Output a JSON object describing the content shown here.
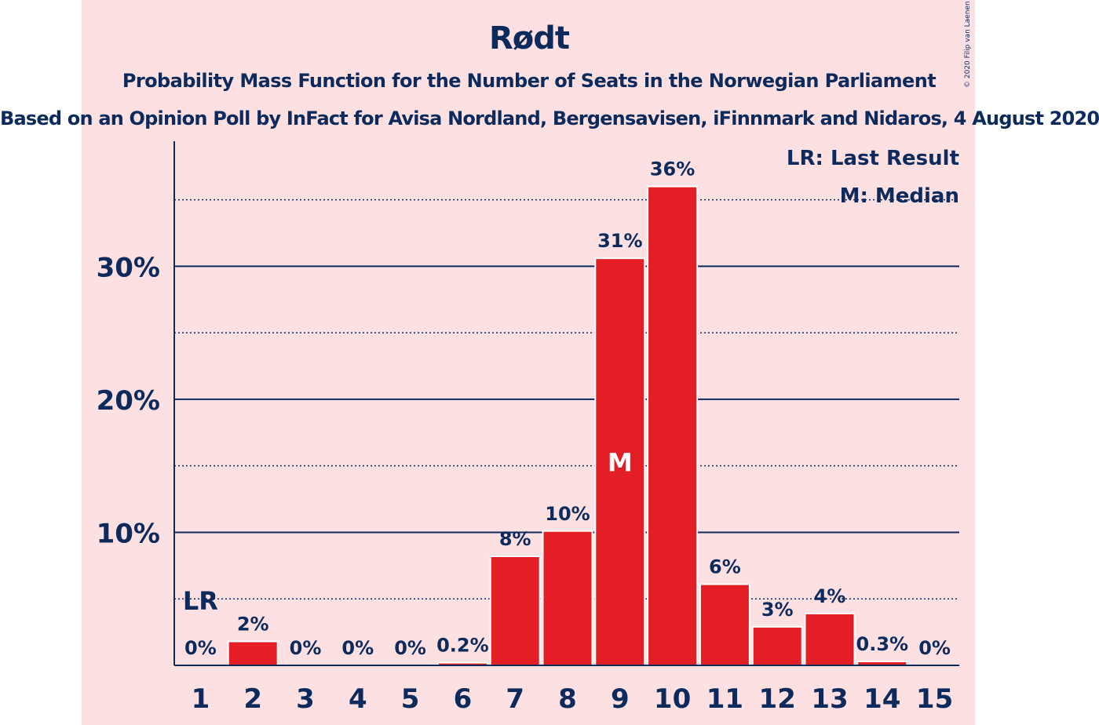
{
  "header": {
    "title": "Rødt",
    "subtitle": "Probability Mass Function for the Number of Seats in the Norwegian Parliament",
    "subtitle2": "Based on an Opinion Poll by InFact for Avisa Nordland, Bergensavisen, iFinnmark and Nidaros, 4 August 2020",
    "copyright": "© 2020 Filip van Laenen"
  },
  "legend": {
    "last_result": "LR: Last Result",
    "median": "M: Median"
  },
  "chart_data": {
    "type": "bar",
    "categories": [
      "1",
      "2",
      "3",
      "4",
      "5",
      "6",
      "7",
      "8",
      "9",
      "10",
      "11",
      "12",
      "13",
      "14",
      "15"
    ],
    "values": [
      0,
      1.8,
      0,
      0,
      0,
      0.2,
      8.2,
      10.1,
      30.6,
      36.0,
      6.1,
      2.9,
      3.9,
      0.3,
      0
    ],
    "labels": [
      "0%",
      "2%",
      "0%",
      "0%",
      "0%",
      "0.2%",
      "8%",
      "10%",
      "31%",
      "36%",
      "6%",
      "3%",
      "4%",
      "0.3%",
      "0%"
    ],
    "ylim": [
      0,
      39.4
    ],
    "yticks": [
      10,
      20,
      30
    ],
    "ytick_labels": [
      "10%",
      "20%",
      "30%"
    ],
    "minor_gridlines": [
      5,
      15,
      25,
      35
    ],
    "bar_color": "#e31e24",
    "axis_color": "#0d2a5c",
    "background_color": "#fde0e2",
    "last_result_marker": {
      "category": "1",
      "label": "LR"
    },
    "median_marker": {
      "category": "9",
      "label": "M"
    },
    "legend_position": "top-right"
  }
}
